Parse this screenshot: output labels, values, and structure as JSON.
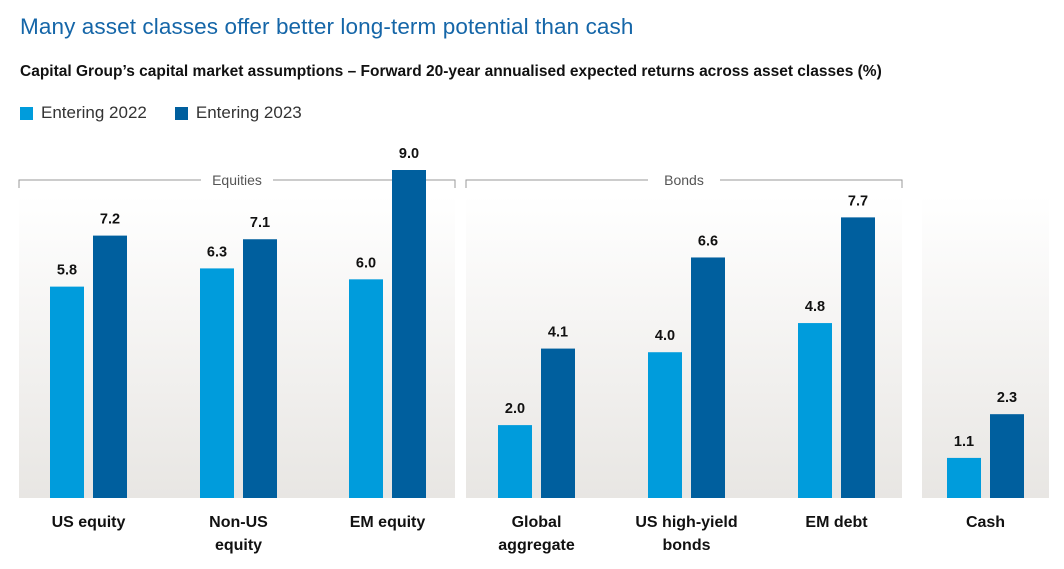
{
  "header": {
    "title": "Many asset classes offer better long-term potential than cash",
    "subtitle": "Capital Group’s capital market assumptions – Forward 20-year annualised expected returns across asset classes (%)"
  },
  "colors": {
    "title": "#1566a8",
    "entering_2022": "#009cdc",
    "entering_2023": "#005f9e",
    "panel_top": "#ffffff",
    "panel_bottom": "#e8e6e3",
    "bracket": "#9a9a9a"
  },
  "chart_data": {
    "type": "bar",
    "title": "Many asset classes offer better long-term potential than cash",
    "subtitle": "Capital Group’s capital market assumptions – Forward 20-year annualised expected returns across asset classes (%)",
    "xlabel": "",
    "ylabel": "",
    "ylim": [
      0,
      9.0
    ],
    "grid": false,
    "legend_position": "top-left",
    "categories": [
      "US equity",
      "Non-US equity",
      "EM equity",
      "Global aggregate",
      "US high-yield bonds",
      "EM debt",
      "Cash"
    ],
    "category_lines": [
      [
        "US equity"
      ],
      [
        "Non-US",
        "equity"
      ],
      [
        "EM equity"
      ],
      [
        "Global",
        "aggregate"
      ],
      [
        "US high-yield",
        "bonds"
      ],
      [
        "EM debt"
      ],
      [
        "Cash"
      ]
    ],
    "groups": [
      {
        "label": "Equities",
        "categories": [
          "US equity",
          "Non-US equity",
          "EM equity"
        ]
      },
      {
        "label": "Bonds",
        "categories": [
          "Global aggregate",
          "US high-yield bonds",
          "EM debt"
        ]
      },
      {
        "label": "",
        "categories": [
          "Cash"
        ]
      }
    ],
    "series": [
      {
        "name": "Entering 2022",
        "values": [
          5.8,
          6.3,
          6.0,
          2.0,
          4.0,
          4.8,
          1.1
        ],
        "labels": [
          "5.8",
          "6.3",
          "6.0",
          "2.0",
          "4.0",
          "4.8",
          "1.1"
        ]
      },
      {
        "name": "Entering 2023",
        "values": [
          7.2,
          7.1,
          9.0,
          4.1,
          6.6,
          7.7,
          2.3
        ],
        "labels": [
          "7.2",
          "7.1",
          "9.0",
          "4.1",
          "6.6",
          "7.7",
          "2.3"
        ]
      }
    ]
  }
}
